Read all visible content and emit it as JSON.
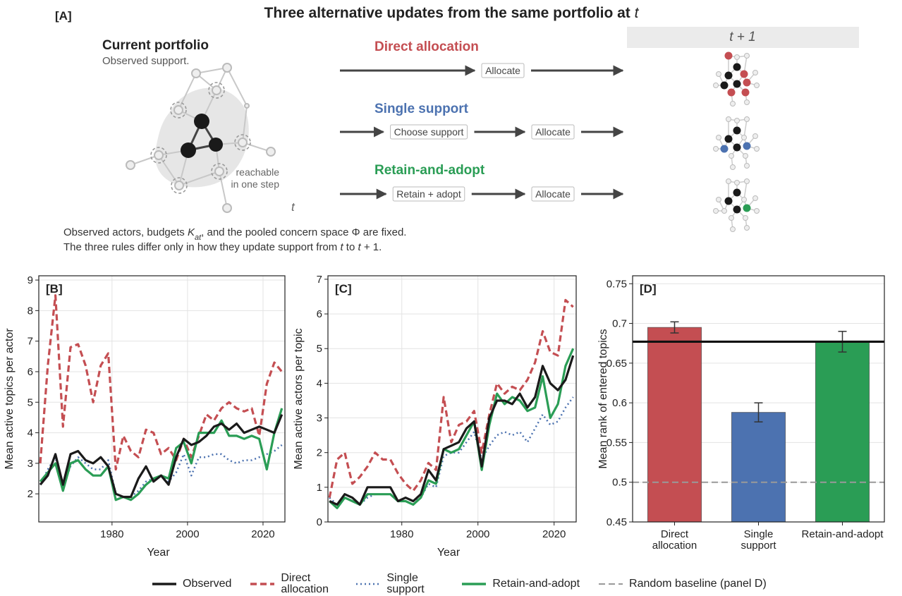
{
  "diagram": {
    "label": "[A]",
    "title": {
      "text": "Three alternative updates from the same portfolio at ",
      "variable": "t"
    },
    "current_portfolio": {
      "heading": "Current portfolio",
      "subheading": "Observed support.",
      "reachable": [
        "reachable",
        "in one step"
      ],
      "time": "t"
    },
    "next_label": "t + 1",
    "rules": [
      {
        "name": "Direct allocation",
        "color": "#c44e52",
        "steps": [
          "Allocate"
        ]
      },
      {
        "name": "Single support",
        "color": "#4c72b0",
        "steps": [
          "Choose support",
          "Allocate"
        ]
      },
      {
        "name": "Retain-and-adopt",
        "color": "#2a9d55",
        "steps": [
          "Retain + adopt",
          "Allocate"
        ]
      }
    ],
    "caption": [
      [
        "Observed actors, budgets ",
        "K",
        "at",
        ", and the pooled concern space Φ are fixed."
      ],
      [
        "The three rules differ only in how they update support from ",
        "t",
        " to ",
        "t",
        " + 1."
      ]
    ]
  },
  "chart_data": [
    {
      "type": "line",
      "panel": "[B]",
      "x_label": "Year",
      "y_label": "Mean active topics per actor",
      "x": [
        1961,
        1963,
        1965,
        1967,
        1969,
        1971,
        1973,
        1975,
        1977,
        1979,
        1981,
        1983,
        1985,
        1987,
        1989,
        1991,
        1993,
        1995,
        1997,
        1999,
        2001,
        2003,
        2005,
        2007,
        2009,
        2011,
        2013,
        2015,
        2017,
        2019,
        2021,
        2023,
        2025
      ],
      "xlim": [
        1960.6,
        2025.8
      ],
      "xticks": [
        1980,
        2000,
        2020
      ],
      "ylim": [
        1.08,
        9.14
      ],
      "yticks": [
        2,
        3,
        4,
        5,
        6,
        7,
        8,
        9
      ],
      "grid": true,
      "series": [
        {
          "name": "Observed",
          "color": "#1a1a1a",
          "style": "solid",
          "values": [
            2.3,
            2.6,
            3.3,
            2.3,
            3.3,
            3.4,
            3.1,
            3.0,
            3.2,
            2.9,
            2.0,
            1.9,
            1.9,
            2.5,
            2.9,
            2.4,
            2.6,
            2.3,
            3.2,
            3.8,
            3.6,
            3.7,
            3.9,
            4.2,
            4.3,
            4.1,
            4.3,
            4.0,
            4.1,
            4.2,
            4.1,
            4.0,
            4.6
          ]
        },
        {
          "name": "Direct allocation",
          "color": "#c44e52",
          "style": "dashed",
          "values": [
            3.0,
            6.2,
            8.5,
            4.2,
            6.8,
            6.9,
            6.2,
            5.0,
            6.2,
            6.6,
            2.8,
            3.9,
            3.4,
            3.2,
            4.1,
            4.0,
            3.3,
            3.5,
            3.1,
            3.8,
            3.2,
            3.9,
            4.6,
            4.4,
            4.8,
            5.0,
            4.8,
            4.7,
            4.8,
            3.9,
            5.6,
            6.3,
            6.0
          ]
        },
        {
          "name": "Single support",
          "color": "#4c72b0",
          "style": "dotted",
          "values": [
            2.3,
            2.8,
            3.2,
            2.2,
            2.9,
            3.2,
            3.0,
            2.8,
            2.8,
            3.1,
            2.0,
            1.9,
            1.9,
            2.1,
            2.4,
            2.5,
            2.6,
            2.4,
            2.7,
            3.3,
            2.6,
            3.2,
            3.2,
            3.3,
            3.3,
            3.1,
            3.0,
            3.1,
            3.1,
            3.2,
            3.3,
            3.4,
            3.6
          ]
        },
        {
          "name": "Retain-and-adopt",
          "color": "#2a9d55",
          "style": "solid",
          "values": [
            2.4,
            2.7,
            3.0,
            2.1,
            3.0,
            3.1,
            2.8,
            2.6,
            2.6,
            2.9,
            1.8,
            1.9,
            1.8,
            2.0,
            2.3,
            2.5,
            2.6,
            2.5,
            3.5,
            3.7,
            3.0,
            4.0,
            4.0,
            4.0,
            4.4,
            3.9,
            3.9,
            3.8,
            3.9,
            3.8,
            2.8,
            4.0,
            4.8
          ]
        }
      ]
    },
    {
      "type": "line",
      "panel": "[C]",
      "x_label": "Year",
      "y_label": "Mean active actors per topic",
      "x": [
        1961,
        1963,
        1965,
        1967,
        1969,
        1971,
        1973,
        1975,
        1977,
        1979,
        1981,
        1983,
        1985,
        1987,
        1989,
        1991,
        1993,
        1995,
        1997,
        1999,
        2001,
        2003,
        2005,
        2007,
        2009,
        2011,
        2013,
        2015,
        2017,
        2019,
        2021,
        2023,
        2025
      ],
      "xlim": [
        1960.6,
        2025.8
      ],
      "xticks": [
        1980,
        2000,
        2020
      ],
      "ylim": [
        0,
        7.1
      ],
      "yticks": [
        0,
        1,
        2,
        3,
        4,
        5,
        6,
        7
      ],
      "grid": true,
      "series": [
        {
          "name": "Observed",
          "color": "#1a1a1a",
          "style": "solid",
          "values": [
            0.6,
            0.5,
            0.8,
            0.7,
            0.5,
            1.0,
            1.0,
            1.0,
            1.0,
            0.6,
            0.7,
            0.6,
            0.8,
            1.5,
            1.2,
            2.1,
            2.2,
            2.3,
            2.7,
            2.9,
            1.6,
            3.0,
            3.5,
            3.5,
            3.4,
            3.7,
            3.3,
            3.6,
            4.5,
            4.0,
            3.8,
            4.1,
            4.8
          ]
        },
        {
          "name": "Direct allocation",
          "color": "#c44e52",
          "style": "dashed",
          "values": [
            0.7,
            1.8,
            2.0,
            1.1,
            1.3,
            1.6,
            2.0,
            1.8,
            1.8,
            1.4,
            1.1,
            0.9,
            1.2,
            1.7,
            1.5,
            3.6,
            2.3,
            2.8,
            2.9,
            3.2,
            2.0,
            3.1,
            4.0,
            3.7,
            3.9,
            3.8,
            4.1,
            4.6,
            5.5,
            4.9,
            4.8,
            6.4,
            6.2
          ]
        },
        {
          "name": "Single support",
          "color": "#4c72b0",
          "style": "dotted",
          "values": [
            0.7,
            0.5,
            0.7,
            0.6,
            0.5,
            0.7,
            0.8,
            0.8,
            0.8,
            0.6,
            0.7,
            0.6,
            0.7,
            1.1,
            1.0,
            1.9,
            2.0,
            2.0,
            2.3,
            2.6,
            1.8,
            2.2,
            2.5,
            2.6,
            2.5,
            2.6,
            2.3,
            2.7,
            3.1,
            2.8,
            2.9,
            3.3,
            3.6
          ]
        },
        {
          "name": "Retain-and-adopt",
          "color": "#2a9d55",
          "style": "solid",
          "values": [
            0.6,
            0.4,
            0.7,
            0.6,
            0.5,
            0.8,
            0.8,
            0.8,
            0.8,
            0.6,
            0.6,
            0.5,
            0.7,
            1.2,
            1.1,
            2.1,
            2.0,
            2.1,
            2.5,
            2.9,
            1.5,
            2.8,
            3.7,
            3.4,
            3.6,
            3.5,
            3.2,
            3.3,
            4.2,
            3.0,
            3.4,
            4.5,
            5.0
          ]
        }
      ]
    },
    {
      "type": "bar",
      "panel": "[D]",
      "y_label": "Mean rank of entered topics",
      "categories": [
        "Direct allocation",
        "Single support",
        "Retain-and-adopt"
      ],
      "values": [
        0.695,
        0.588,
        0.677
      ],
      "errors": [
        0.007,
        0.012,
        0.013
      ],
      "colors": [
        "#c44e52",
        "#4c72b0",
        "#2a9d55"
      ],
      "ylim": [
        0.45,
        0.76
      ],
      "yticks": [
        0.45,
        0.5,
        0.55,
        0.6,
        0.65,
        0.7,
        0.75
      ],
      "grid": true,
      "reference_lines": [
        {
          "value": 0.677,
          "color": "#111111",
          "style": "solid"
        },
        {
          "name": "Random baseline (panel D)",
          "value": 0.5,
          "color": "#999999",
          "style": "dashed"
        }
      ]
    }
  ]
}
